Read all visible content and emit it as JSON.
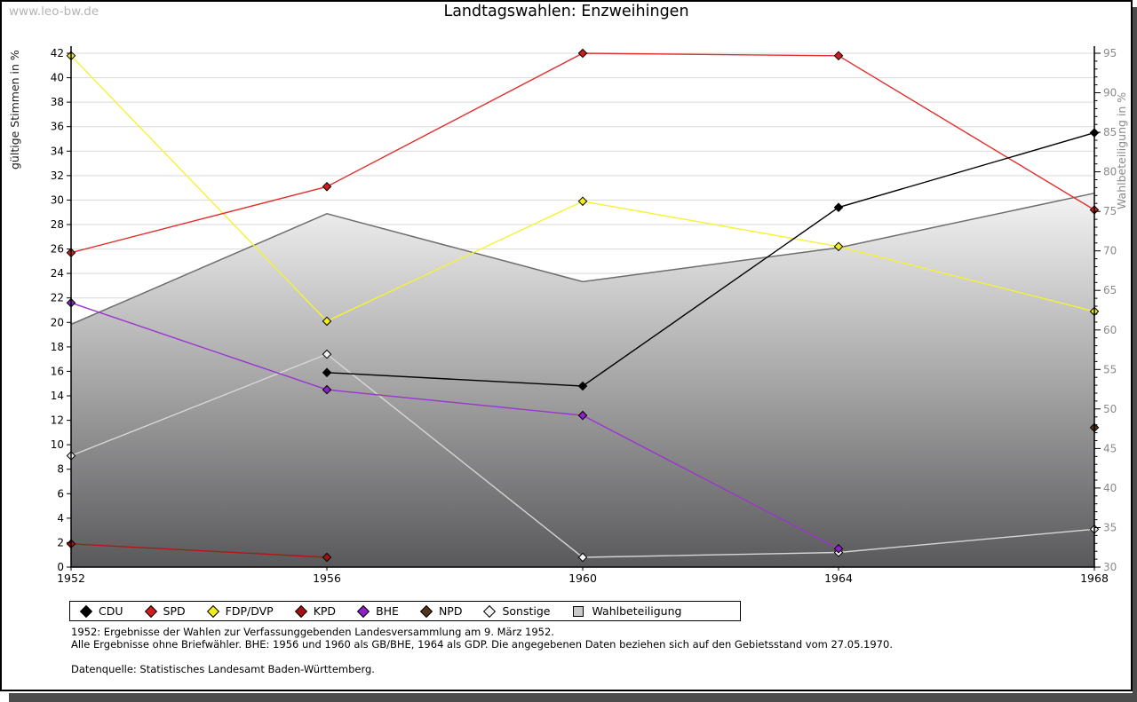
{
  "page": {
    "watermark": "www.leo-bw.de",
    "title": "Landtagswahlen: Enzweihingen"
  },
  "chart_data": {
    "type": "line",
    "title": "Landtagswahlen: Enzweihingen",
    "xlabel": "",
    "ylabel_left": "gültige Stimmen in %",
    "ylabel_right": "Wahlbeteiligung in %",
    "ylim_left": [
      0,
      42
    ],
    "ylim_right": [
      30,
      95
    ],
    "grid": true,
    "legend_position": "bottom",
    "xticks": [
      1952,
      1956,
      1960,
      1964,
      1968
    ],
    "yticks_left": [
      0,
      2,
      4,
      6,
      8,
      10,
      12,
      14,
      16,
      18,
      20,
      22,
      24,
      26,
      28,
      30,
      32,
      34,
      36,
      38,
      40,
      42
    ],
    "yticks_right": [
      30,
      35,
      40,
      45,
      50,
      55,
      60,
      65,
      70,
      75,
      80,
      85,
      90,
      95
    ],
    "grid_color": "#d9d9d9",
    "axis_color": "#000000",
    "right_tick_label_color": "#8a8a8a",
    "series": [
      {
        "name": "CDU",
        "type": "line",
        "axis": "left",
        "color": "#000000",
        "marker_fill": "#000000",
        "points": [
          [
            1956,
            15.9
          ],
          [
            1960,
            14.8
          ],
          [
            1964,
            29.4
          ],
          [
            1968,
            35.5
          ]
        ]
      },
      {
        "name": "SPD",
        "type": "line",
        "axis": "left",
        "color": "#e22e2e",
        "marker_fill": "#d01c1c",
        "points": [
          [
            1952,
            25.7
          ],
          [
            1956,
            31.1
          ],
          [
            1960,
            42.0
          ],
          [
            1964,
            41.8
          ],
          [
            1968,
            29.2
          ]
        ]
      },
      {
        "name": "FDP/DVP",
        "type": "line",
        "axis": "left",
        "color": "#f6f233",
        "marker_fill": "#f2ec1a",
        "points": [
          [
            1952,
            41.8
          ],
          [
            1956,
            20.1
          ],
          [
            1960,
            29.9
          ],
          [
            1964,
            26.2
          ],
          [
            1968,
            20.9
          ]
        ]
      },
      {
        "name": "KPD",
        "type": "line",
        "axis": "left",
        "color": "#b11717",
        "marker_fill": "#a60f0f",
        "points": [
          [
            1952,
            1.9
          ],
          [
            1956,
            0.8
          ]
        ]
      },
      {
        "name": "BHE",
        "type": "line",
        "axis": "left",
        "color": "#9a35cf",
        "marker_fill": "#8d22c4",
        "points": [
          [
            1952,
            21.6
          ],
          [
            1956,
            14.5
          ],
          [
            1960,
            12.4
          ],
          [
            1964,
            1.5
          ]
        ]
      },
      {
        "name": "NPD",
        "type": "line",
        "axis": "left",
        "color": "#5a3a1e",
        "marker_fill": "#53351b",
        "points": [
          [
            1968,
            11.4
          ]
        ]
      },
      {
        "name": "Sonstige",
        "type": "line",
        "axis": "left",
        "color": "#d6d6d6",
        "marker_fill": "#f2f2f2",
        "points": [
          [
            1952,
            9.1
          ],
          [
            1956,
            17.4
          ],
          [
            1960,
            0.8
          ],
          [
            1964,
            1.2
          ],
          [
            1968,
            3.1
          ]
        ]
      },
      {
        "name": "Wahlbeteiligung",
        "type": "area",
        "axis": "right",
        "color": "#6e6e6e",
        "fill_top": "#f4f4f4",
        "fill_bottom": "#59595b",
        "legend_fill": "#c9c9c9",
        "points": [
          [
            1952,
            60.7
          ],
          [
            1956,
            74.7
          ],
          [
            1960,
            66.1
          ],
          [
            1964,
            70.4
          ],
          [
            1968,
            77.3
          ]
        ]
      }
    ]
  },
  "footnotes": {
    "line1": "1952: Ergebnisse der Wahlen zur Verfassunggebenden Landesversammlung am 9. März 1952.",
    "line2": "Alle Ergebnisse ohne Briefwähler. BHE: 1956 und 1960 als GB/BHE, 1964 als GDP. Die angegebenen Daten beziehen sich auf den Gebietsstand vom 27.05.1970.",
    "source": "Datenquelle: Statistisches Landesamt Baden-Württemberg."
  }
}
